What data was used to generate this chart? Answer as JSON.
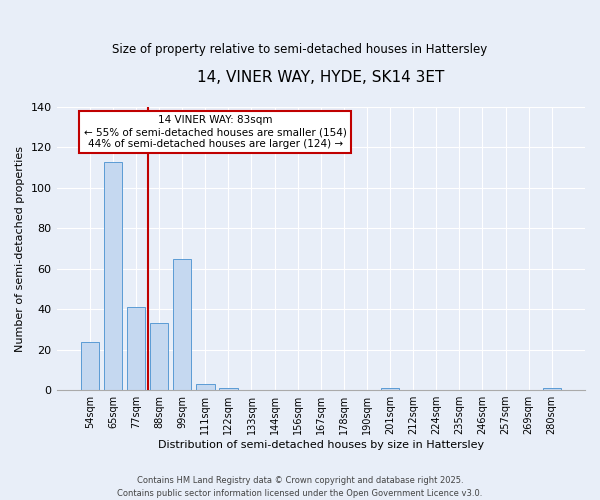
{
  "title": "14, VINER WAY, HYDE, SK14 3ET",
  "subtitle": "Size of property relative to semi-detached houses in Hattersley",
  "xlabel": "Distribution of semi-detached houses by size in Hattersley",
  "ylabel": "Number of semi-detached properties",
  "categories": [
    "54sqm",
    "65sqm",
    "77sqm",
    "88sqm",
    "99sqm",
    "111sqm",
    "122sqm",
    "133sqm",
    "144sqm",
    "156sqm",
    "167sqm",
    "178sqm",
    "190sqm",
    "201sqm",
    "212sqm",
    "224sqm",
    "235sqm",
    "246sqm",
    "257sqm",
    "269sqm",
    "280sqm"
  ],
  "values": [
    24,
    113,
    41,
    33,
    65,
    3,
    1,
    0,
    0,
    0,
    0,
    0,
    0,
    1,
    0,
    0,
    0,
    0,
    0,
    0,
    1
  ],
  "bar_color": "#c5d8f0",
  "bar_edge_color": "#5b9bd5",
  "vline_x": 2.5,
  "vline_color": "#c00000",
  "annotation_title": "14 VINER WAY: 83sqm",
  "annotation_line1": "← 55% of semi-detached houses are smaller (154)",
  "annotation_line2": "44% of semi-detached houses are larger (124) →",
  "annotation_box_color": "#ffffff",
  "annotation_box_edge": "#c00000",
  "ylim": [
    0,
    140
  ],
  "yticks": [
    0,
    20,
    40,
    60,
    80,
    100,
    120,
    140
  ],
  "footer1": "Contains HM Land Registry data © Crown copyright and database right 2025.",
  "footer2": "Contains public sector information licensed under the Open Government Licence v3.0.",
  "bg_color": "#e8eef8",
  "plot_bg_color": "#e8eef8"
}
